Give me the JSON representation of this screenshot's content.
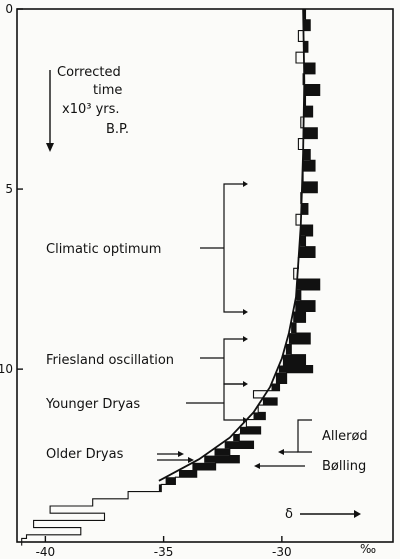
{
  "chart_data": {
    "type": "line",
    "x_axis": {
      "ticks": [
        -40,
        -35,
        -30
      ],
      "tick_labels": [
        "-40",
        "-35",
        "-30"
      ],
      "unit_label": "‰",
      "range": [
        -41.2,
        -25.3
      ],
      "symbol": "δ"
    },
    "y_axis": {
      "ticks": [
        0,
        5,
        10
      ],
      "tick_labels": [
        "0",
        "5",
        "10"
      ],
      "range": [
        0,
        14.8
      ],
      "direction_note": [
        "Corrected",
        "time",
        "x10³ yrs.",
        "B.P."
      ]
    },
    "series": [
      {
        "kind": "step",
        "x": [
          -29.0,
          -28.8,
          -29.3,
          -28.9,
          -29.4,
          -28.6,
          -29.1,
          -28.4,
          -29.0,
          -28.7,
          -29.2,
          -28.5,
          -29.3,
          -28.8,
          -28.6,
          -29.1,
          -28.5,
          -29.2,
          -28.9,
          -29.4,
          -28.7,
          -29.0,
          -28.6,
          -29.3,
          -29.5,
          -28.4,
          -29.2,
          -28.6,
          -29.0,
          -29.4,
          -28.8,
          -29.6,
          -29.0,
          -28.7,
          -29.8,
          -30.1,
          -31.2,
          -30.2,
          -31.0,
          -30.7,
          -31.5,
          -30.9,
          -31.8,
          -31.2,
          -32.2,
          -31.8,
          -32.8,
          -33.6,
          -34.5,
          -35.1,
          -36.5,
          -38.0,
          -39.8,
          -37.5,
          -40.5,
          -38.5,
          -40.8,
          -41.0
        ],
        "y": [
          0.0,
          0.3,
          0.6,
          0.9,
          1.2,
          1.5,
          1.8,
          2.1,
          2.4,
          2.7,
          3.0,
          3.3,
          3.6,
          3.9,
          4.2,
          4.5,
          4.8,
          5.1,
          5.4,
          5.7,
          6.0,
          6.3,
          6.6,
          6.9,
          7.2,
          7.5,
          7.8,
          8.1,
          8.4,
          8.7,
          9.0,
          9.3,
          9.6,
          9.9,
          10.1,
          10.4,
          10.6,
          10.8,
          11.0,
          11.2,
          11.4,
          11.6,
          11.8,
          12.0,
          12.2,
          12.4,
          12.6,
          12.8,
          13.0,
          13.2,
          13.4,
          13.6,
          13.8,
          14.0,
          14.2,
          14.4,
          14.6,
          14.7
        ]
      },
      {
        "kind": "smooth",
        "x": [
          -29.1,
          -29.05,
          -29.1,
          -29.2,
          -29.4,
          -29.7,
          -30.0,
          -30.5,
          -31.2,
          -32.2,
          -33.5,
          -35.2
        ],
        "y": [
          0.0,
          2.0,
          4.0,
          6.0,
          8.0,
          9.0,
          9.7,
          10.5,
          11.2,
          11.9,
          12.5,
          13.1
        ]
      }
    ],
    "annotations": [
      {
        "text": "Climatic optimum",
        "y_range": [
          4.7,
          8.8
        ]
      },
      {
        "text": "Friesland oscillation",
        "y_range": [
          9.0,
          10.0
        ]
      },
      {
        "text": "Younger Dryas",
        "y_range": [
          10.0,
          11.3
        ]
      },
      {
        "text": "Allerød",
        "y_range": [
          11.3,
          11.8
        ]
      },
      {
        "text": "Older Dryas",
        "y_point": 11.9
      },
      {
        "text": "Bølling",
        "y_point": 12.2
      }
    ]
  }
}
